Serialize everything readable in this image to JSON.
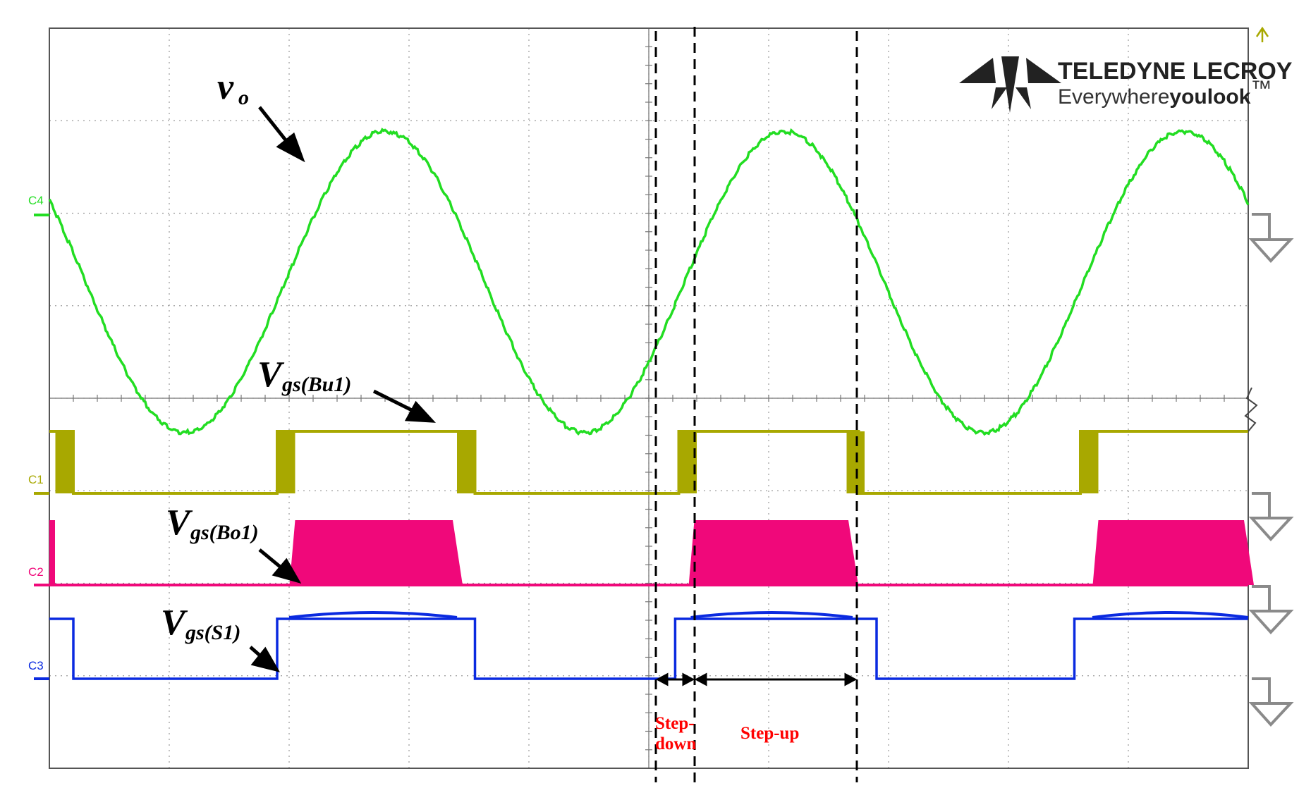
{
  "chart_data": {
    "type": "line",
    "title": "",
    "xlabel": "",
    "ylabel": "",
    "grid": true,
    "x_divisions": 10,
    "y_divisions": 8,
    "series": [
      {
        "name": "v_o",
        "channel": "C4",
        "color": "#22dd22",
        "shape": "sine",
        "period_div": 3.33,
        "peak_div": 1.55,
        "offset_div": -0.95,
        "first_peak_x_div": 2.8
      },
      {
        "name": "V_gs(Bu1)",
        "channel": "C1",
        "color": "#a8a800",
        "shape": "gate",
        "states": "high: 0-0.2, 2.0-3.55, 5.3-6.75, 8.65-10 div (PWM edges at each rising/falling transition)"
      },
      {
        "name": "V_gs(Bo1)",
        "channel": "C2",
        "color": "#f0087a",
        "shape": "pwm-block",
        "states": "active: 2.0-3.4, 5.3-6.6, 8.65-10 div"
      },
      {
        "name": "V_gs(S1)",
        "channel": "C3",
        "color": "#0a2ae0",
        "shape": "gate",
        "states": "high: 0-0.2, 1.9-3.55, 5.2-6.9, 8.5-10 div"
      }
    ],
    "annotations": [
      {
        "text": "Step-down",
        "from_div": 5.05,
        "to_div": 5.38
      },
      {
        "text": "Step-up",
        "from_div": 5.38,
        "to_div": 6.75
      }
    ]
  },
  "labels": {
    "vo_main": "v",
    "vo_sub": "o",
    "bu1_main": "V",
    "bu1_sub": "gs(Bu1)",
    "bo1_main": "V",
    "bo1_sub": "gs(Bo1)",
    "s1_main": "V",
    "s1_sub": "gs(S1)",
    "stepdown_line1": "Step-",
    "stepdown_line2": "down",
    "stepup": "Step-up"
  },
  "channel_labels": {
    "c4": "C4",
    "c1": "C1",
    "c2": "C2",
    "c3": "C3"
  },
  "brand": {
    "name": "TELEDYNE LECROY",
    "tagline_a": "Everywhere",
    "tagline_b": "youlook",
    "tm": "™"
  },
  "colors": {
    "vo": "#22dd22",
    "bu1": "#a8a800",
    "bo1": "#f0087a",
    "s1": "#0a2ae0",
    "grid": "#9a9a9a",
    "frame": "#555555",
    "region": "#ff0000"
  }
}
